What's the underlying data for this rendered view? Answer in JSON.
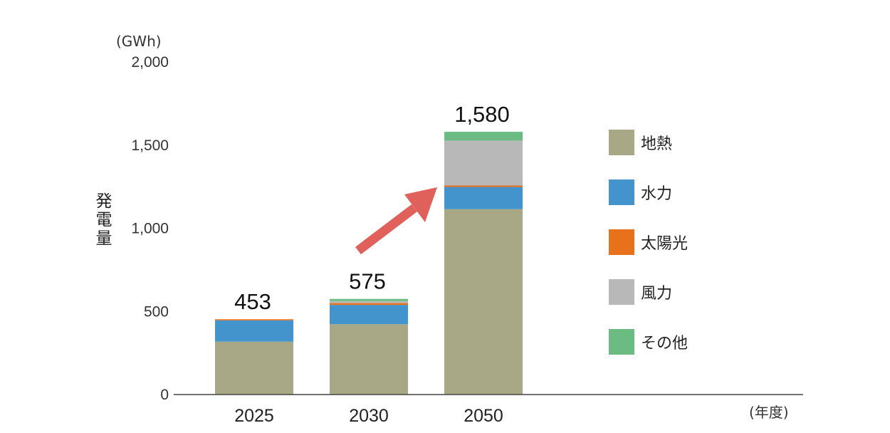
{
  "chart_data": {
    "type": "bar",
    "stacked": true,
    "categories": [
      "2025",
      "2030",
      "2050"
    ],
    "series": [
      {
        "name": "地熱",
        "color": "#a8a886",
        "values": [
          318,
          423,
          1115
        ]
      },
      {
        "name": "水力",
        "color": "#4394cd",
        "values": [
          128,
          116,
          133
        ]
      },
      {
        "name": "太陽光",
        "color": "#e8711c",
        "values": [
          7,
          11,
          9
        ]
      },
      {
        "name": "風力",
        "color": "#b8b8b8",
        "values": [
          0,
          12,
          270
        ]
      },
      {
        "name": "その他",
        "color": "#6cbb82",
        "values": [
          0,
          13,
          53
        ]
      }
    ],
    "totals": [
      "453",
      "575",
      "1,580"
    ],
    "y_ticks": [
      {
        "value": 0,
        "label": "0"
      },
      {
        "value": 500,
        "label": "500"
      },
      {
        "value": 1000,
        "label": "1,000"
      },
      {
        "value": 1500,
        "label": "1,500"
      },
      {
        "value": 2000,
        "label": "2,000"
      }
    ],
    "ylim": [
      0,
      2000
    ],
    "ylabel": "発電量",
    "y_unit": "(GWh)",
    "x_unit": "(年度)",
    "grid": false,
    "legend_position": "right",
    "annotation": {
      "type": "arrow",
      "from_category": "2030",
      "to_category": "2050",
      "color": "#e0605c"
    }
  }
}
